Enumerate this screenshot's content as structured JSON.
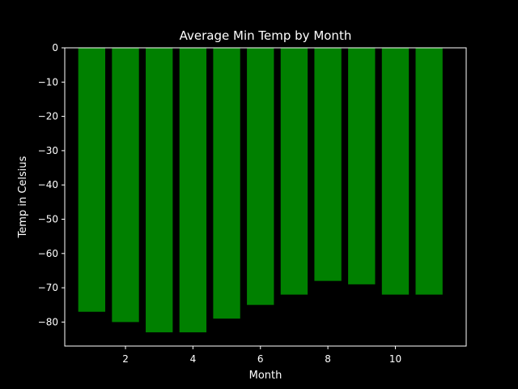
{
  "chart_data": {
    "type": "bar",
    "title": "Average Min Temp by Month",
    "xlabel": "Month",
    "ylabel": "Temp in Celsius",
    "x": [
      1,
      2,
      3,
      4,
      5,
      6,
      7,
      8,
      9,
      10,
      11
    ],
    "values": [
      -77,
      -80,
      -83,
      -83,
      -79,
      -75,
      -72,
      -68,
      -69,
      -72,
      -72
    ],
    "xlim": [
      0.2,
      12.1
    ],
    "ylim": [
      -87,
      0
    ],
    "xticks": [
      2,
      4,
      6,
      8,
      10
    ],
    "yticks": [
      0,
      -10,
      -20,
      -30,
      -40,
      -50,
      -60,
      -70,
      -80
    ],
    "bar_color": "#008000",
    "background_color": "#000000",
    "foreground_color": "#ffffff",
    "grid": false,
    "legend": false
  }
}
